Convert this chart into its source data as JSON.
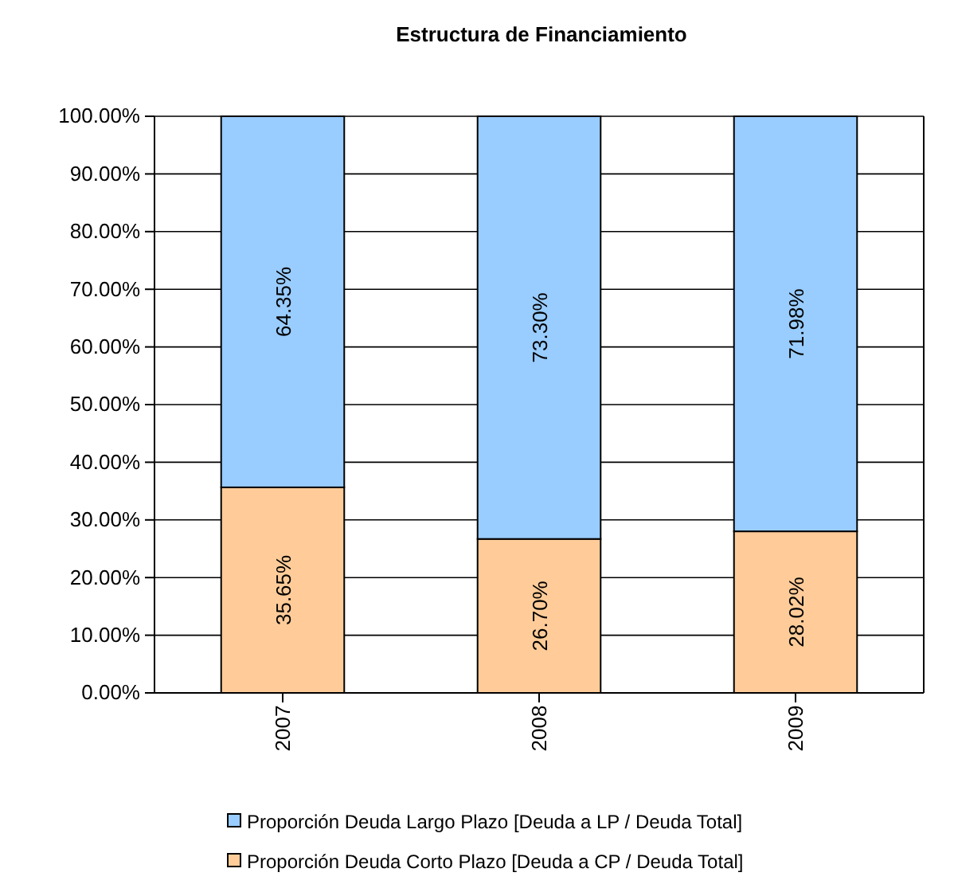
{
  "chart_data": {
    "type": "bar",
    "title": "Estructura de Financiamiento",
    "stacked": true,
    "categories": [
      "2007",
      "2008",
      "2009"
    ],
    "series": [
      {
        "name": "Proporción Deuda Corto Plazo [Deuda a CP / Deuda Total]",
        "color": "#ffcc99",
        "values": [
          35.65,
          26.7,
          28.02
        ],
        "value_labels": [
          "35.65%",
          "26.70%",
          "28.02%"
        ]
      },
      {
        "name": "Proporción Deuda Largo Plazo [Deuda a LP / Deuda Total]",
        "color": "#99ccff",
        "values": [
          64.35,
          73.3,
          71.98
        ],
        "value_labels": [
          "64.35%",
          "73.30%",
          "71.98%"
        ]
      }
    ],
    "ylim": [
      0,
      100
    ],
    "yticks": [
      {
        "value": 0,
        "label": "0.00%"
      },
      {
        "value": 10,
        "label": "10.00%"
      },
      {
        "value": 20,
        "label": "20.00%"
      },
      {
        "value": 30,
        "label": "30.00%"
      },
      {
        "value": 40,
        "label": "40.00%"
      },
      {
        "value": 50,
        "label": "50.00%"
      },
      {
        "value": 60,
        "label": "60.00%"
      },
      {
        "value": 70,
        "label": "70.00%"
      },
      {
        "value": 80,
        "label": "80.00%"
      },
      {
        "value": 90,
        "label": "90.00%"
      },
      {
        "value": 100,
        "label": "100.00%"
      }
    ],
    "grid": "y",
    "legend": "bottom"
  }
}
